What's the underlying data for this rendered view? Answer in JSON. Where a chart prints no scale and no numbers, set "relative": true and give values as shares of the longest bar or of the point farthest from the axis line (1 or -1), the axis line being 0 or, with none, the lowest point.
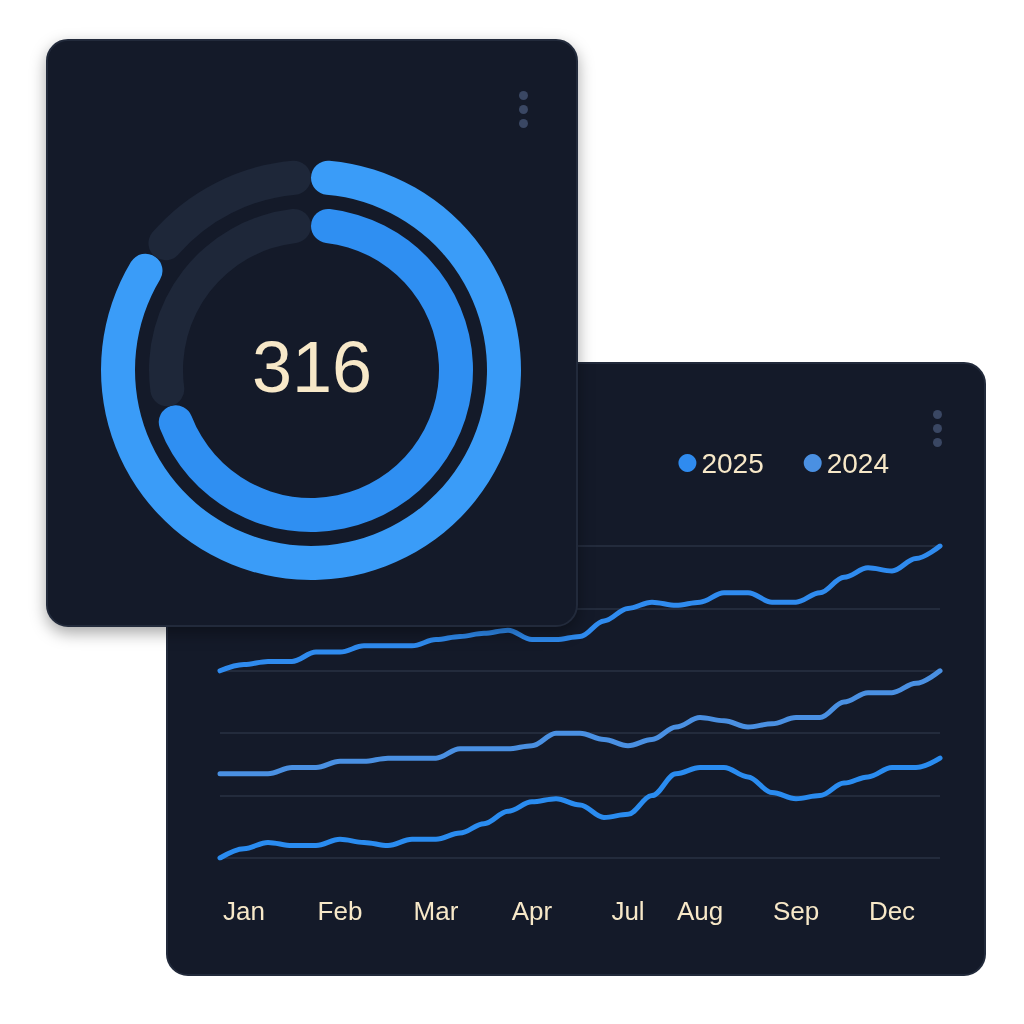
{
  "chart_data": [
    {
      "type": "donut",
      "categories": [
        null,
        null
      ],
      "series": [
        {
          "values": [
            85,
            15
          ],
          "colors": [
            "#3a9cf8",
            "#1e2739"
          ]
        },
        {
          "values": [
            71,
            29
          ],
          "colors": [
            "#2f8ff2",
            "#1e2739"
          ]
        }
      ],
      "annotations": [
        "316"
      ]
    },
    {
      "type": "line",
      "relative": true,
      "categories": [
        null,
        "Jan",
        null,
        null,
        null,
        "Feb",
        null,
        null,
        null,
        "Mar",
        null,
        null,
        null,
        "Apr",
        null,
        null,
        null,
        "Jul",
        null,
        null,
        "Aug",
        null,
        null,
        null,
        "Sep",
        null,
        null,
        null,
        "Dec",
        null,
        null
      ],
      "series": [
        {
          "name": "2025",
          "color": "#2f8bef",
          "values": [
            0.6,
            0.62,
            0.63,
            0.63,
            0.66,
            0.66,
            0.68,
            0.68,
            0.68,
            0.7,
            0.71,
            0.72,
            0.73,
            0.7,
            0.7,
            0.71,
            0.76,
            0.8,
            0.82,
            0.81,
            0.82,
            0.85,
            0.85,
            0.82,
            0.82,
            0.85,
            0.9,
            0.93,
            0.92,
            0.96,
            1
          ]
        },
        {
          "name": "2024",
          "color": "#4a90e2",
          "values": [
            0.27,
            0.27,
            0.27,
            0.29,
            0.29,
            0.31,
            0.31,
            0.32,
            0.32,
            0.32,
            0.35,
            0.35,
            0.35,
            0.36,
            0.4,
            0.4,
            0.38,
            0.36,
            0.38,
            0.42,
            0.45,
            0.44,
            0.42,
            0.43,
            0.45,
            0.45,
            0.5,
            0.53,
            0.53,
            0.56,
            0.6
          ]
        },
        {
          "color": "#2a8cf0",
          "values": [
            0,
            0.03,
            0.05,
            0.04,
            0.04,
            0.06,
            0.05,
            0.04,
            0.06,
            0.06,
            0.08,
            0.11,
            0.15,
            0.18,
            0.19,
            0.17,
            0.13,
            0.14,
            0.2,
            0.27,
            0.29,
            0.29,
            0.26,
            0.21,
            0.19,
            0.2,
            0.24,
            0.26,
            0.29,
            0.29,
            0.32
          ]
        }
      ],
      "legend": "top right",
      "grid": "y",
      "marker": "none"
    }
  ]
}
